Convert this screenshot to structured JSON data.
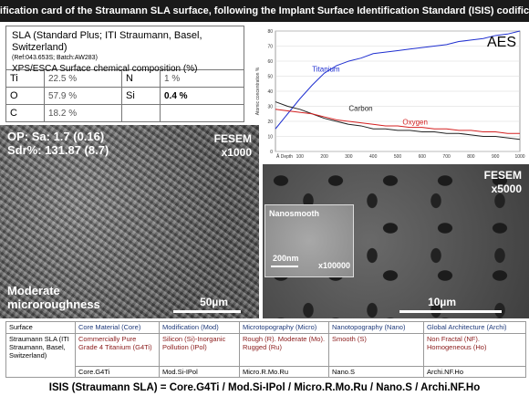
{
  "header": {
    "title": "Identification card of the Straumann SLA surface, following the Implant Surface Identification Standard (ISIS) codification"
  },
  "composition": {
    "title": "SLA (Standard Plus; ITI Straumann, Basel, Switzerland)",
    "ref": "(Ref:043.653S; Batch:AW283)",
    "subtitle": "XPS/ESCA Surface chemical composition (%)",
    "rows": [
      {
        "el1": "Ti",
        "val1": "22.5 %",
        "el2": "N",
        "val2": "1 %"
      },
      {
        "el1": "O",
        "val1": "57.9 %",
        "el2": "Si",
        "val2": "0.4 %"
      },
      {
        "el1": "C",
        "val1": "18.2 %",
        "el2": "",
        "val2": ""
      }
    ]
  },
  "chart_data": {
    "type": "line",
    "title": "AES",
    "xlabel": "Å Depth",
    "ylabel": "Atomic concentration %",
    "xlim": [
      0,
      1000
    ],
    "ylim": [
      0,
      80
    ],
    "xticks": [
      "Å Depth",
      "100",
      "200",
      "300",
      "400",
      "500",
      "600",
      "700",
      "800",
      "900",
      "1000"
    ],
    "yticks": [
      "0",
      "10",
      "20",
      "30",
      "40",
      "50",
      "60",
      "70",
      "80"
    ],
    "series": [
      {
        "name": "Titanium",
        "color": "#1f2fd0",
        "x": [
          0,
          50,
          100,
          150,
          200,
          250,
          300,
          350,
          400,
          450,
          500,
          550,
          600,
          650,
          700,
          750,
          800,
          850,
          900,
          950,
          1000
        ],
        "y": [
          15,
          25,
          35,
          44,
          52,
          57,
          60,
          62,
          65,
          66,
          67,
          68,
          69,
          70,
          71,
          73,
          74,
          75,
          77,
          78,
          80
        ]
      },
      {
        "name": "Carbon",
        "color": "#222222",
        "x": [
          0,
          50,
          100,
          150,
          200,
          250,
          300,
          350,
          400,
          450,
          500,
          550,
          600,
          650,
          700,
          750,
          800,
          850,
          900,
          950,
          1000
        ],
        "y": [
          33,
          30,
          28,
          25,
          22,
          20,
          18,
          17,
          15,
          15,
          14,
          14,
          13,
          13,
          12,
          12,
          11,
          10,
          10,
          9,
          8
        ]
      },
      {
        "name": "Oxygen",
        "color": "#d42020",
        "x": [
          0,
          50,
          100,
          150,
          200,
          250,
          300,
          350,
          400,
          450,
          500,
          550,
          600,
          650,
          700,
          750,
          800,
          850,
          900,
          950,
          1000
        ],
        "y": [
          28,
          27,
          26,
          25,
          23,
          21,
          20,
          19,
          18,
          17,
          17,
          16,
          16,
          15,
          15,
          14,
          14,
          13,
          13,
          12,
          12
        ]
      }
    ]
  },
  "sem_left": {
    "op_line1": "OP: Sa: 1.7 (0.16)",
    "op_line2": "Sdr%: 131.87 (8.7)",
    "mode": "FESEM",
    "mag": "x1000",
    "desc_line1": "Moderate",
    "desc_line2": "microroughness",
    "scale": "50µm"
  },
  "sem_right": {
    "mode": "FESEM",
    "mag": "x5000",
    "scale": "10µm",
    "inset": {
      "label": "Nanosmooth",
      "scale": "200nm",
      "mag": "x100000"
    }
  },
  "isis": {
    "headers": [
      "Surface",
      "Core Material (Core)",
      "Modification (Mod)",
      "Microtopography (Micro)",
      "Nanotopography (Nano)",
      "Global Architecture (Archi)"
    ],
    "surface_name": "Straumann SLA (ITI Straumann, Basel, Switzerland)",
    "descriptions": [
      "Commercially Pure Grade 4 Titanium (G4Ti)",
      "Silicon (Si)-Inorganic Pollution (IPol)",
      "Rough (R). Moderate (Mo). Rugged (Ru)",
      "Smooth (S)",
      "Non Fractal (NF). Homogeneous (Ho)"
    ],
    "codes": [
      "Core.G4Ti",
      "Mod.Si-IPol",
      "Micro.R.Mo.Ru",
      "Nano.S",
      "Archi.NF.Ho"
    ]
  },
  "footer": {
    "text": "ISIS (Straumann SLA) = Core.G4Ti / Mod.Si-IPol / Micro.R.Mo.Ru / Nano.S / Archi.NF.Ho"
  }
}
